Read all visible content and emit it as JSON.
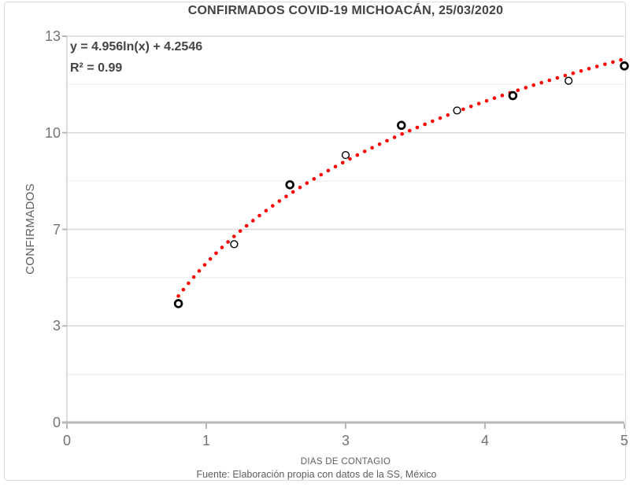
{
  "chart_data": {
    "type": "scatter",
    "title": "CONFIRMADOS COVID-19 MICHOACÁN, 25/03/2020",
    "xlabel": "DIAS DE CONTAGIO",
    "ylabel": "CONFIRMADOS",
    "source_note": "Fuente: Elaboración propia con datos de la SS, México",
    "xlim": [
      0,
      5
    ],
    "ylim": [
      0,
      13
    ],
    "x_ticks": {
      "values": [
        0,
        1.25,
        2.5,
        3.75,
        5
      ],
      "labels": [
        "0",
        "1",
        "3",
        "4",
        "5"
      ]
    },
    "y_ticks": {
      "values": [
        0,
        3.25,
        6.5,
        9.75,
        13
      ],
      "labels": [
        "0",
        "3",
        "7",
        "10",
        "13"
      ]
    },
    "y_minor_ticks": [
      1.625,
      4.875,
      8.125,
      11.375
    ],
    "grid": "horizontal-only",
    "legend": "none",
    "series": [
      {
        "name": "Confirmados",
        "marker": "open-circle",
        "marker_color": "#000000",
        "x": [
          1,
          1.5,
          2,
          2.5,
          3,
          3.5,
          4,
          4.5,
          5
        ],
        "y": [
          4,
          6,
          8,
          9,
          10,
          10.5,
          11,
          11.5,
          12
        ],
        "bold_marker": [
          true,
          false,
          true,
          false,
          true,
          false,
          true,
          false,
          true
        ]
      }
    ],
    "trendline": {
      "type": "logarithmic",
      "equation_label": "y = 4.956ln(x) + 4.2546",
      "r2_label": "R² = 0.99",
      "a": 4.956,
      "b": 4.2546,
      "x_start": 1.0,
      "x_end": 4.97,
      "color": "#ff0000",
      "style": "dotted"
    },
    "colors": {
      "title_text": "#434343",
      "tick_text": "#737373",
      "axis_label_text": "#5f5f5f",
      "grid_major": "#d9d9d9",
      "grid_minor": "#f2f2f2",
      "axis_line": "#b7b7b7",
      "left_axis_line": "#d4d4d4",
      "frame_border": "#dadce0",
      "background": "#ffffff"
    }
  }
}
